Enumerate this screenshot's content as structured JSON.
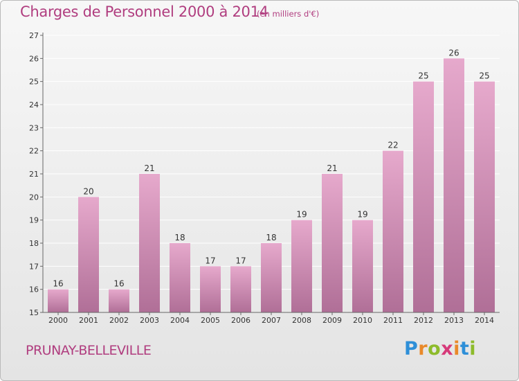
{
  "header": {
    "title": "Charges de Personnel 2000 à 2014",
    "subtitle": "(en milliers d'€)"
  },
  "footer": {
    "town": "PRUNAY-BELLEVILLE",
    "logo_letters": [
      "P",
      "r",
      "o",
      "x",
      "i",
      "t",
      "i"
    ],
    "logo_colors": [
      "#2e8fd8",
      "#e9892a",
      "#8dbb2b",
      "#d63a7a",
      "#e9892a",
      "#2e8fd8",
      "#8dbb2b"
    ]
  },
  "colors": {
    "bar_top": "#e6a9cc",
    "bar_bottom": "#b06f97",
    "axis": "#666666",
    "grid": "#ffffff",
    "title": "#b03d7f"
  },
  "chart_data": {
    "type": "bar",
    "categories": [
      "2000",
      "2001",
      "2002",
      "2003",
      "2004",
      "2005",
      "2006",
      "2007",
      "2008",
      "2009",
      "2010",
      "2011",
      "2012",
      "2013",
      "2014"
    ],
    "values": [
      16,
      20,
      16,
      21,
      18,
      17,
      17,
      18,
      19,
      21,
      19,
      22,
      25,
      26,
      25
    ],
    "yticks": [
      15,
      16,
      17,
      18,
      19,
      20,
      21,
      22,
      23,
      24,
      25,
      26,
      27
    ],
    "ylim": [
      15,
      27
    ],
    "grid": true,
    "data_labels": true
  }
}
